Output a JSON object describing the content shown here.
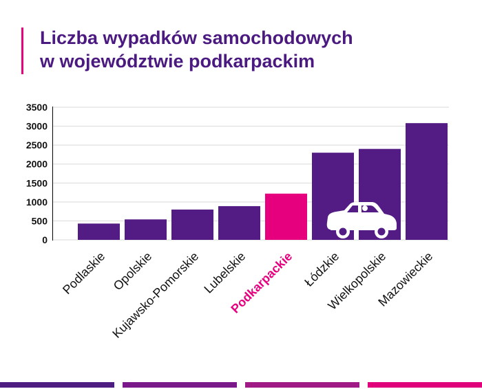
{
  "colors": {
    "bar": "#531c84",
    "highlight": "#e6007e",
    "title": "#4b1a80",
    "grid": "#d9d9d9",
    "footer": [
      "#4d1d82",
      "#7a1a8a",
      "#a01a86",
      "#e0007a"
    ]
  },
  "icon": "car-icon",
  "chart_data": {
    "type": "bar",
    "title": [
      "Liczba wypadków samochodowych",
      "w województwie podkarpackim"
    ],
    "categories": [
      "Podlaskie",
      "Opolskie",
      "Kujawsko-Pomorskie",
      "Lubelskie",
      "Podkarpackie",
      "Łódzkie",
      "Wielkopolskie",
      "Mazowieckie"
    ],
    "values": [
      430,
      540,
      800,
      890,
      1220,
      2300,
      2400,
      3080
    ],
    "highlight": "Podkarpackie",
    "ylim": [
      0,
      3500
    ],
    "yticks": [
      0,
      500,
      1000,
      1500,
      2000,
      2500,
      3000,
      3500
    ],
    "ytick_labels": [
      "0",
      "500",
      "1000",
      "1500",
      "2000",
      "2500",
      "3000",
      "3500"
    ],
    "xlabel": "",
    "ylabel": "",
    "grid": true,
    "legend": null
  }
}
